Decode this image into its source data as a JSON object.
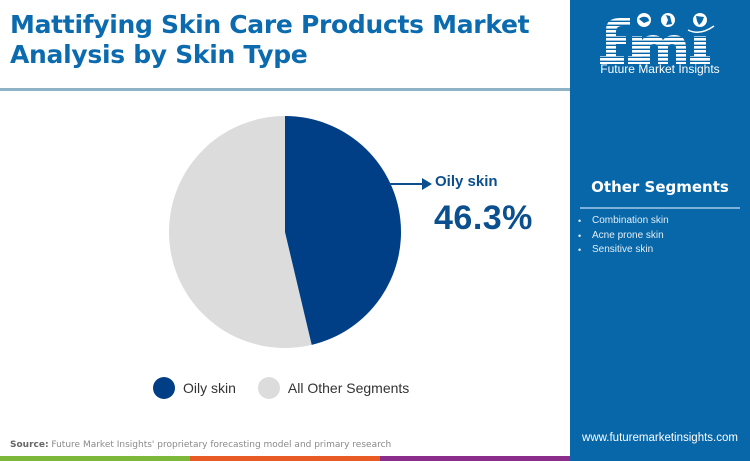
{
  "header": {
    "title_line1": "Mattifying Skin Care Products Market",
    "title_line2": "Analysis by Skin Type"
  },
  "brand": {
    "logo_letters": "fmi",
    "logo_text": "Future Market Insights",
    "website": "www.futuremarketinsights.com",
    "panel_color": "#0767A9"
  },
  "side_panel": {
    "title": "Other Segments",
    "items": [
      {
        "label": "Combination skin"
      },
      {
        "label": "Acne prone skin"
      },
      {
        "label": "Sensitive skin"
      }
    ],
    "bullet": "•"
  },
  "callout": {
    "label": "Oily skin",
    "value": "46.3%"
  },
  "legend": [
    {
      "label": "Oily skin",
      "color": "#003F85"
    },
    {
      "label": "All Other Segments",
      "color": "#DCDCDC"
    }
  ],
  "footer": {
    "source_label": "Source:",
    "source_text": " Future Market Insights' proprietary forecasting model and primary research",
    "strip_colors": [
      "#7DB83A",
      "#E85B25",
      "#8B2D8A"
    ]
  },
  "chart_data": {
    "type": "pie",
    "title": "Mattifying Skin Care Products Market Analysis by Skin Type",
    "categories": [
      "Oily skin",
      "All Other Segments"
    ],
    "values": [
      46.3,
      53.7
    ],
    "colors": [
      "#003F85",
      "#DCDCDC"
    ],
    "unit": "%",
    "start_angle_deg": 0,
    "direction": "clockwise",
    "annotations": [
      {
        "target": "Oily skin",
        "text": "Oily skin 46.3%"
      }
    ],
    "legend_position": "bottom"
  }
}
